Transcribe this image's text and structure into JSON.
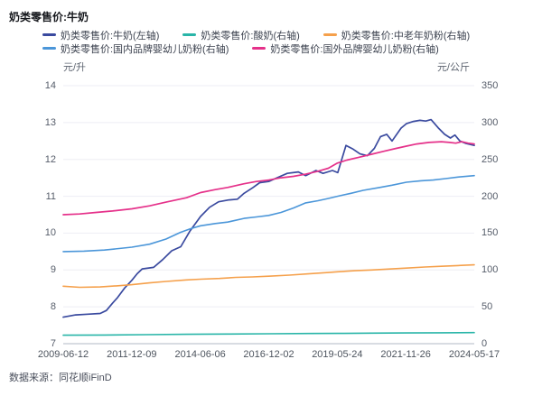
{
  "header": {
    "title": "奶类零售价:牛奶"
  },
  "footer": {
    "source": "数据来源：同花顺iFinD"
  },
  "chart_data": {
    "type": "line",
    "title": "奶类零售价:牛奶",
    "grid": true,
    "legend_position": "top",
    "left_axis": {
      "unit": "元/升",
      "min": 7,
      "max": 14,
      "ticks": [
        14,
        13,
        12,
        11,
        10,
        9,
        8,
        7
      ]
    },
    "right_axis": {
      "unit": "元/公斤",
      "min": 0,
      "max": 350,
      "ticks": [
        350,
        300,
        250,
        200,
        150,
        100,
        50,
        0
      ]
    },
    "x_ticks": [
      "2009-06-12",
      "2011-12-09",
      "2014-06-06",
      "2016-12-02",
      "2019-05-24",
      "2021-11-26",
      "2024-05-17"
    ],
    "x_range": [
      "2009-06-12",
      "2024-05-17"
    ],
    "colors": {
      "grid": "#ededf4",
      "axis_line": "#b2b8c4"
    },
    "series": [
      {
        "name": "奶类零售价:牛奶(左轴)",
        "axis": "left",
        "color": "#3a4a9f",
        "width": 1.7,
        "legend_row": 0,
        "points": [
          [
            0,
            7.72
          ],
          [
            0.03,
            7.78
          ],
          [
            0.06,
            7.8
          ],
          [
            0.09,
            7.82
          ],
          [
            0.105,
            7.9
          ],
          [
            0.12,
            8.1
          ],
          [
            0.132,
            8.25
          ],
          [
            0.15,
            8.52
          ],
          [
            0.167,
            8.72
          ],
          [
            0.18,
            8.9
          ],
          [
            0.192,
            9.03
          ],
          [
            0.22,
            9.07
          ],
          [
            0.242,
            9.28
          ],
          [
            0.264,
            9.52
          ],
          [
            0.286,
            9.63
          ],
          [
            0.308,
            10.05
          ],
          [
            0.334,
            10.45
          ],
          [
            0.356,
            10.7
          ],
          [
            0.378,
            10.85
          ],
          [
            0.402,
            10.9
          ],
          [
            0.424,
            10.92
          ],
          [
            0.44,
            11.08
          ],
          [
            0.462,
            11.24
          ],
          [
            0.478,
            11.37
          ],
          [
            0.5,
            11.4
          ],
          [
            0.52,
            11.5
          ],
          [
            0.545,
            11.62
          ],
          [
            0.572,
            11.66
          ],
          [
            0.59,
            11.56
          ],
          [
            0.615,
            11.7
          ],
          [
            0.632,
            11.62
          ],
          [
            0.655,
            11.7
          ],
          [
            0.668,
            11.64
          ],
          [
            0.688,
            12.38
          ],
          [
            0.705,
            12.28
          ],
          [
            0.722,
            12.15
          ],
          [
            0.74,
            12.1
          ],
          [
            0.757,
            12.3
          ],
          [
            0.772,
            12.62
          ],
          [
            0.787,
            12.68
          ],
          [
            0.8,
            12.5
          ],
          [
            0.822,
            12.85
          ],
          [
            0.835,
            12.97
          ],
          [
            0.852,
            13.03
          ],
          [
            0.868,
            13.06
          ],
          [
            0.882,
            13.04
          ],
          [
            0.895,
            13.08
          ],
          [
            0.912,
            12.86
          ],
          [
            0.928,
            12.68
          ],
          [
            0.942,
            12.58
          ],
          [
            0.953,
            12.66
          ],
          [
            0.965,
            12.5
          ],
          [
            0.98,
            12.43
          ],
          [
            1,
            12.38
          ]
        ]
      },
      {
        "name": "奶类零售价:酸奶(右轴)",
        "axis": "right",
        "color": "#29b5a8",
        "width": 1.6,
        "legend_row": 0,
        "points": [
          [
            0,
            11.5
          ],
          [
            0.1,
            11.8
          ],
          [
            0.2,
            12.2
          ],
          [
            0.3,
            12.7
          ],
          [
            0.4,
            13.1
          ],
          [
            0.5,
            13.5
          ],
          [
            0.6,
            13.8
          ],
          [
            0.667,
            14
          ],
          [
            0.75,
            14.3
          ],
          [
            0.835,
            14.6
          ],
          [
            0.92,
            14.8
          ],
          [
            1,
            15
          ]
        ]
      },
      {
        "name": "奶类零售价:中老年奶粉(右轴)",
        "axis": "right",
        "color": "#f5a04b",
        "width": 1.6,
        "legend_row": 0,
        "points": [
          [
            0,
            78
          ],
          [
            0.04,
            76.5
          ],
          [
            0.09,
            77
          ],
          [
            0.13,
            78.5
          ],
          [
            0.167,
            80
          ],
          [
            0.21,
            82.5
          ],
          [
            0.25,
            84.5
          ],
          [
            0.3,
            86.5
          ],
          [
            0.334,
            87.5
          ],
          [
            0.38,
            88.5
          ],
          [
            0.42,
            90
          ],
          [
            0.46,
            90.5
          ],
          [
            0.5,
            91.5
          ],
          [
            0.55,
            93
          ],
          [
            0.6,
            95
          ],
          [
            0.645,
            96.5
          ],
          [
            0.667,
            97.5
          ],
          [
            0.71,
            99
          ],
          [
            0.75,
            100
          ],
          [
            0.8,
            101.5
          ],
          [
            0.835,
            102.5
          ],
          [
            0.88,
            104
          ],
          [
            0.92,
            105
          ],
          [
            0.96,
            106
          ],
          [
            1,
            107
          ]
        ]
      },
      {
        "name": "奶类零售价:国内品牌婴幼儿奶粉(右轴)",
        "axis": "right",
        "color": "#4b96d9",
        "width": 1.6,
        "legend_row": 1,
        "points": [
          [
            0,
            125
          ],
          [
            0.05,
            125.5
          ],
          [
            0.1,
            127
          ],
          [
            0.167,
            131
          ],
          [
            0.21,
            135
          ],
          [
            0.25,
            142
          ],
          [
            0.285,
            151
          ],
          [
            0.31,
            156
          ],
          [
            0.334,
            160
          ],
          [
            0.37,
            163
          ],
          [
            0.4,
            165
          ],
          [
            0.44,
            170
          ],
          [
            0.47,
            172
          ],
          [
            0.5,
            174
          ],
          [
            0.53,
            178
          ],
          [
            0.56,
            184
          ],
          [
            0.59,
            191
          ],
          [
            0.62,
            194
          ],
          [
            0.645,
            197
          ],
          [
            0.667,
            200
          ],
          [
            0.7,
            204
          ],
          [
            0.73,
            208
          ],
          [
            0.77,
            212
          ],
          [
            0.8,
            215
          ],
          [
            0.835,
            219
          ],
          [
            0.87,
            221
          ],
          [
            0.9,
            222
          ],
          [
            0.93,
            224
          ],
          [
            0.96,
            226
          ],
          [
            1,
            228
          ]
        ]
      },
      {
        "name": "奶类零售价:国外品牌婴幼儿奶粉(右轴)",
        "axis": "right",
        "color": "#e5318a",
        "width": 1.7,
        "legend_row": 1,
        "points": [
          [
            0,
            175
          ],
          [
            0.04,
            176
          ],
          [
            0.08,
            178
          ],
          [
            0.12,
            180
          ],
          [
            0.167,
            183
          ],
          [
            0.21,
            187
          ],
          [
            0.25,
            192
          ],
          [
            0.3,
            198
          ],
          [
            0.334,
            205
          ],
          [
            0.37,
            209
          ],
          [
            0.4,
            212
          ],
          [
            0.44,
            217
          ],
          [
            0.47,
            220
          ],
          [
            0.5,
            222
          ],
          [
            0.53,
            225
          ],
          [
            0.56,
            227
          ],
          [
            0.59,
            230
          ],
          [
            0.62,
            234
          ],
          [
            0.645,
            238
          ],
          [
            0.667,
            245
          ],
          [
            0.69,
            249
          ],
          [
            0.72,
            253
          ],
          [
            0.75,
            257
          ],
          [
            0.78,
            261
          ],
          [
            0.81,
            265
          ],
          [
            0.835,
            268
          ],
          [
            0.86,
            271
          ],
          [
            0.89,
            273
          ],
          [
            0.92,
            274
          ],
          [
            0.94,
            273
          ],
          [
            0.955,
            272
          ],
          [
            0.97,
            274
          ],
          [
            0.985,
            272
          ],
          [
            1,
            271
          ]
        ]
      }
    ]
  }
}
